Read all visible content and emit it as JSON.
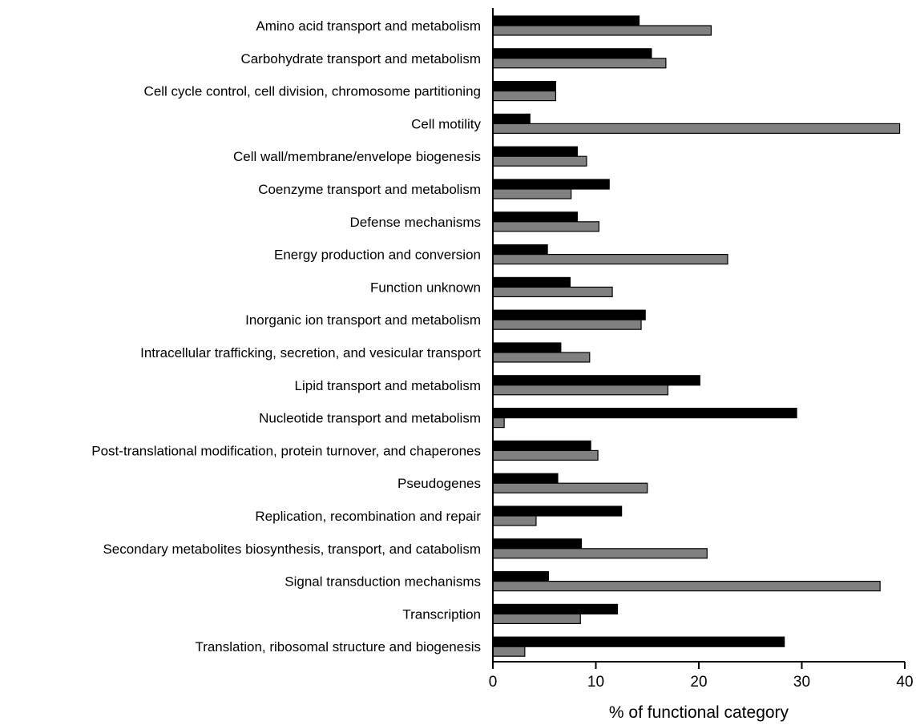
{
  "chart_data": {
    "type": "bar",
    "orientation": "horizontal",
    "xlabel": "% of functional category",
    "ylabel": "",
    "xlim": [
      0,
      40
    ],
    "xticks": [
      0,
      10,
      20,
      30,
      40
    ],
    "grid": false,
    "legend": "none",
    "categories": [
      "Amino acid transport and metabolism",
      "Carbohydrate transport and metabolism",
      "Cell cycle control, cell division, chromosome partitioning",
      "Cell motility",
      "Cell wall/membrane/envelope biogenesis",
      "Coenzyme transport and metabolism",
      "Defense mechanisms",
      "Energy production and conversion",
      "Function unknown",
      "Inorganic ion transport and metabolism",
      "Intracellular trafficking, secretion, and vesicular transport",
      "Lipid transport and metabolism",
      "Nucleotide transport and metabolism",
      "Post-translational modification, protein turnover, and chaperones",
      "Pseudogenes",
      "Replication, recombination and repair",
      "Secondary metabolites biosynthesis, transport, and catabolism",
      "Signal transduction mechanisms",
      "Transcription",
      "Translation, ribosomal structure and biogenesis"
    ],
    "series": [
      {
        "color": "#000000",
        "values": [
          14.2,
          15.4,
          6.1,
          3.6,
          8.2,
          11.3,
          8.2,
          5.3,
          7.5,
          14.8,
          6.6,
          20.1,
          29.5,
          9.5,
          6.3,
          12.5,
          8.6,
          5.4,
          12.1,
          28.3
        ]
      },
      {
        "color": "#808080",
        "values": [
          21.2,
          16.8,
          6.1,
          39.5,
          9.1,
          7.6,
          10.3,
          22.8,
          11.6,
          14.4,
          9.4,
          17.0,
          1.1,
          10.2,
          15.0,
          4.2,
          20.8,
          37.6,
          8.5,
          3.1
        ]
      }
    ]
  }
}
